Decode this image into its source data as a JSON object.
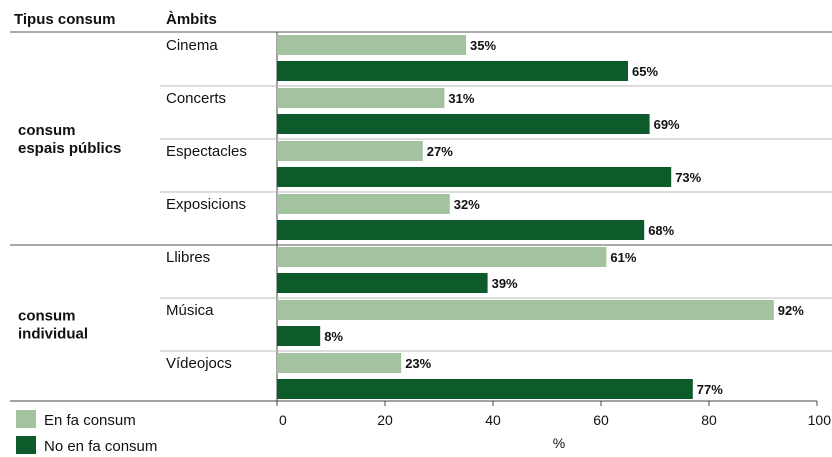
{
  "chart_data": {
    "type": "bar",
    "orientation": "horizontal",
    "header": {
      "group_col": "Tipus consum",
      "category_col": "Àmbits"
    },
    "groups": [
      {
        "label": "consum espais públics",
        "categories": [
          "Cinema",
          "Concerts",
          "Espectacles",
          "Exposicions"
        ]
      },
      {
        "label": "consum individual",
        "categories": [
          "Llibres",
          "Música",
          "Vídeojocs"
        ]
      }
    ],
    "categories": [
      "Cinema",
      "Concerts",
      "Espectacles",
      "Exposicions",
      "Llibres",
      "Música",
      "Vídeojocs"
    ],
    "series": [
      {
        "name": "En fa consum",
        "color": "#a3c3a0",
        "values": [
          35,
          31,
          27,
          32,
          61,
          92,
          23
        ]
      },
      {
        "name": "No en fa consum",
        "color": "#0d5a2b",
        "values": [
          65,
          69,
          73,
          68,
          39,
          8,
          77
        ]
      }
    ],
    "value_suffix": "%",
    "xlim": [
      0,
      100
    ],
    "xticks": [
      0,
      20,
      40,
      60,
      80,
      100
    ],
    "xlabel": "%",
    "legend_position": "bottom-left",
    "grid": false
  }
}
